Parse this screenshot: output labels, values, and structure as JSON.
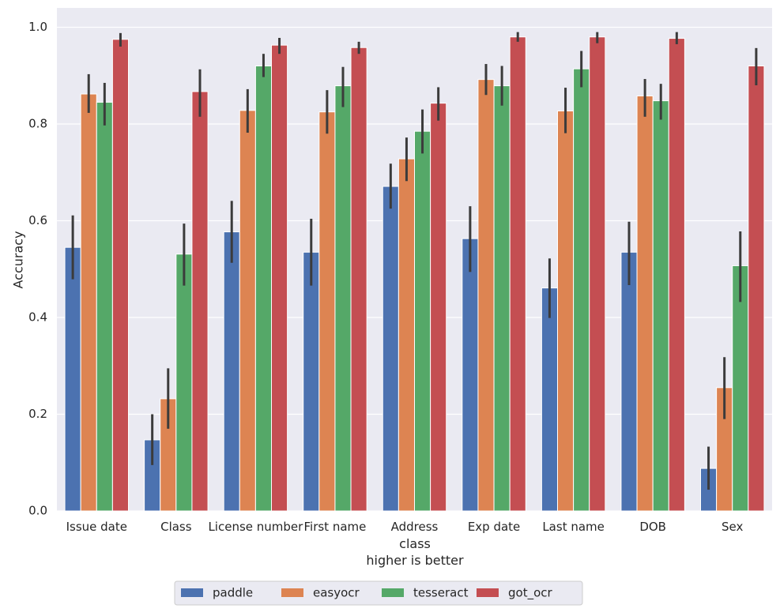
{
  "chart_data": {
    "type": "bar",
    "title": "",
    "xlabel": "class",
    "xlabel_sub": "higher is better",
    "ylabel": "Accuracy",
    "ylim": [
      0,
      1.04
    ],
    "yticks": [
      "0.0",
      "0.2",
      "0.4",
      "0.6",
      "0.8",
      "1.0"
    ],
    "grid": true,
    "legend_position": "bottom-center",
    "categories": [
      "Issue date",
      "Class",
      "License number",
      "First name",
      "Address",
      "Exp date",
      "Last name",
      "DOB",
      "Sex"
    ],
    "series": [
      {
        "name": "paddle",
        "color": "#4c72b0",
        "values": [
          0.545,
          0.147,
          0.577,
          0.535,
          0.671,
          0.563,
          0.461,
          0.535,
          0.088
        ],
        "ci_low": [
          0.479,
          0.095,
          0.513,
          0.466,
          0.625,
          0.494,
          0.399,
          0.467,
          0.044
        ],
        "ci_high": [
          0.611,
          0.2,
          0.641,
          0.604,
          0.718,
          0.63,
          0.522,
          0.598,
          0.133
        ]
      },
      {
        "name": "easyocr",
        "color": "#dd8452",
        "values": [
          0.862,
          0.232,
          0.828,
          0.825,
          0.728,
          0.892,
          0.827,
          0.858,
          0.255
        ],
        "ci_low": [
          0.823,
          0.17,
          0.782,
          0.78,
          0.682,
          0.86,
          0.781,
          0.815,
          0.19
        ],
        "ci_high": [
          0.903,
          0.295,
          0.872,
          0.87,
          0.772,
          0.924,
          0.875,
          0.893,
          0.318
        ]
      },
      {
        "name": "tesseract",
        "color": "#55a868",
        "values": [
          0.845,
          0.531,
          0.92,
          0.879,
          0.785,
          0.879,
          0.914,
          0.848,
          0.507
        ],
        "ci_low": [
          0.797,
          0.466,
          0.897,
          0.835,
          0.739,
          0.838,
          0.876,
          0.809,
          0.432
        ],
        "ci_high": [
          0.885,
          0.594,
          0.945,
          0.918,
          0.83,
          0.92,
          0.951,
          0.883,
          0.578
        ]
      },
      {
        "name": "got_ocr",
        "color": "#c44e52",
        "values": [
          0.975,
          0.867,
          0.963,
          0.958,
          0.843,
          0.98,
          0.98,
          0.977,
          0.92
        ],
        "ci_low": [
          0.96,
          0.815,
          0.945,
          0.945,
          0.807,
          0.97,
          0.967,
          0.965,
          0.88
        ],
        "ci_high": [
          0.988,
          0.913,
          0.978,
          0.97,
          0.876,
          0.99,
          0.99,
          0.99,
          0.957
        ]
      }
    ]
  }
}
